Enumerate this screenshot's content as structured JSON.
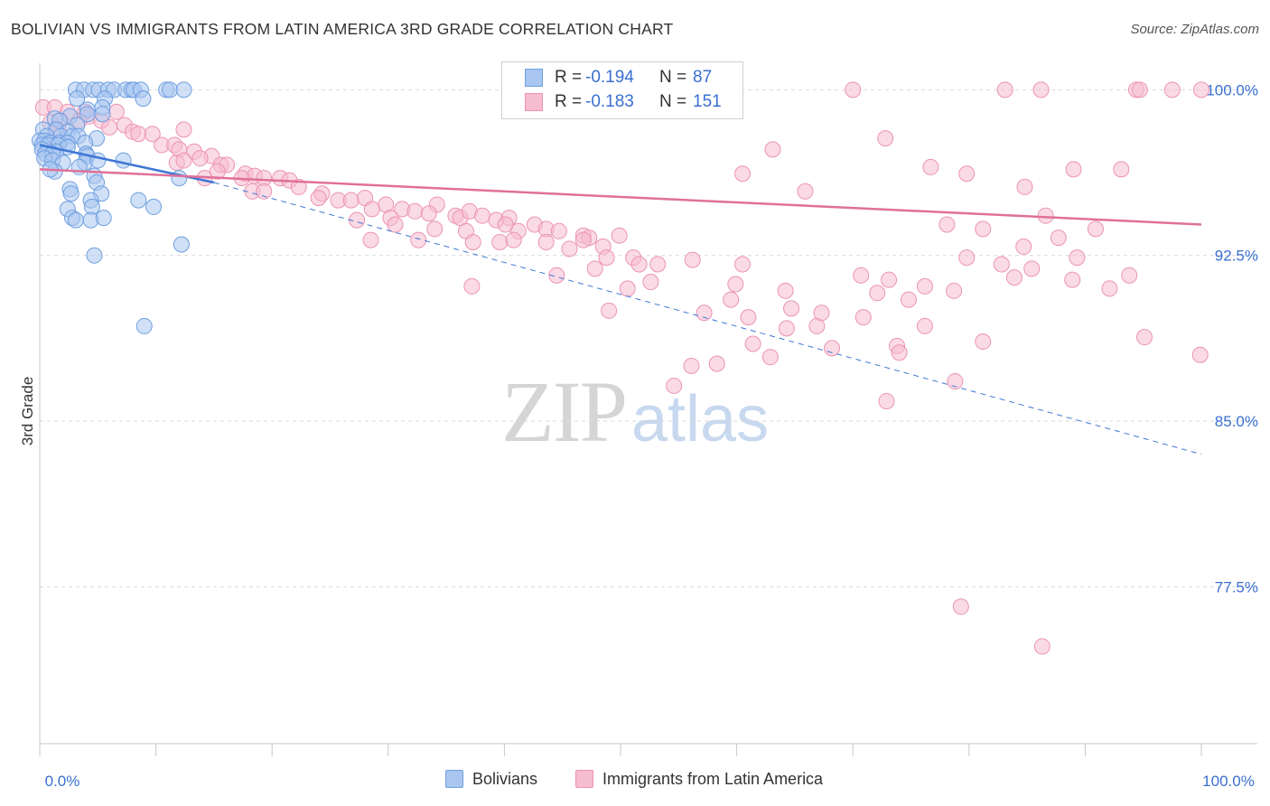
{
  "header": {
    "title": "BOLIVIAN VS IMMIGRANTS FROM LATIN AMERICA 3RD GRADE CORRELATION CHART",
    "source": "Source: ZipAtlas.com"
  },
  "watermark": {
    "zip": "ZIP",
    "atlas": "atlas"
  },
  "legend": {
    "rows": [
      {
        "r_label": "R =",
        "r_value": "-0.194",
        "n_label": "N =",
        "n_value": "87"
      },
      {
        "r_label": "R =",
        "r_value": "-0.183",
        "n_label": "N =",
        "n_value": "151"
      }
    ]
  },
  "bottom_legend": {
    "series1": "Bolivians",
    "series2": "Immigrants from Latin America"
  },
  "colors": {
    "blue_fill": "#a9c6f0",
    "blue_stroke": "#6f9fe0",
    "blue_line": "#3f77d4",
    "pink_fill": "#f6bcd0",
    "pink_stroke": "#ec94b3",
    "pink_line": "#e0709a",
    "tick_label": "#3a6fd1",
    "grid": "#d9d9d9"
  },
  "chart_data": {
    "type": "scatter",
    "title": "BOLIVIAN VS IMMIGRANTS FROM LATIN AMERICA 3RD GRADE CORRELATION CHART",
    "xlabel": "",
    "ylabel": "3rd Grade",
    "xlim": [
      0,
      100
    ],
    "ylim": [
      70.4,
      101.2
    ],
    "x_tick_labels": [
      "0.0%",
      "100.0%"
    ],
    "y_ticks": [
      100.0,
      92.5,
      85.0,
      77.5
    ],
    "y_tick_labels": [
      "100.0%",
      "92.5%",
      "85.0%",
      "77.5%"
    ],
    "grid": "horizontal dashed",
    "legend_position": "top-center",
    "series": [
      {
        "name": "Bolivians",
        "R": -0.194,
        "N": 87,
        "trend": {
          "x": [
            0,
            15
          ],
          "y": [
            97.5,
            95.8
          ],
          "extrapolated_to": [
            100,
            83.5
          ]
        },
        "points": [
          [
            3.1,
            100
          ],
          [
            3.8,
            100
          ],
          [
            4.6,
            100
          ],
          [
            5.1,
            100
          ],
          [
            5.9,
            100
          ],
          [
            6.4,
            100
          ],
          [
            7.4,
            100
          ],
          [
            7.9,
            100
          ],
          [
            8.1,
            100
          ],
          [
            8.7,
            100
          ],
          [
            10.9,
            100
          ],
          [
            11.2,
            100
          ],
          [
            12.4,
            100
          ],
          [
            3.2,
            99.6
          ],
          [
            5.6,
            99.6
          ],
          [
            8.9,
            99.6
          ],
          [
            5.4,
            99.2
          ],
          [
            4.1,
            99.1
          ],
          [
            2.6,
            98.8
          ],
          [
            4.1,
            98.9
          ],
          [
            5.4,
            98.9
          ],
          [
            1.3,
            98.7
          ],
          [
            1.7,
            98.6
          ],
          [
            3.2,
            98.4
          ],
          [
            0.3,
            98.2
          ],
          [
            1.4,
            98.2
          ],
          [
            2.4,
            98.1
          ],
          [
            0.6,
            97.9
          ],
          [
            1.8,
            97.9
          ],
          [
            2.8,
            97.9
          ],
          [
            3.3,
            97.9
          ],
          [
            4.9,
            97.8
          ],
          [
            0,
            97.7
          ],
          [
            0.4,
            97.7
          ],
          [
            0.9,
            97.6
          ],
          [
            1.7,
            97.6
          ],
          [
            2.4,
            97.6
          ],
          [
            3.9,
            97.6
          ],
          [
            0.2,
            97.5
          ],
          [
            0.7,
            97.5
          ],
          [
            1.6,
            97.5
          ],
          [
            2.4,
            97.4
          ],
          [
            0.2,
            97.3
          ],
          [
            1.4,
            97.2
          ],
          [
            0.5,
            97.1
          ],
          [
            1.1,
            97.1
          ],
          [
            4,
            97.1
          ],
          [
            4.1,
            97
          ],
          [
            0.4,
            96.9
          ],
          [
            1.1,
            96.8
          ],
          [
            2,
            96.7
          ],
          [
            3.9,
            96.7
          ],
          [
            5,
            96.8
          ],
          [
            7.2,
            96.8
          ],
          [
            3.4,
            96.5
          ],
          [
            1.3,
            96.3
          ],
          [
            0.9,
            96.4
          ],
          [
            4.7,
            96.1
          ],
          [
            12,
            96
          ],
          [
            4.9,
            95.8
          ],
          [
            2.6,
            95.5
          ],
          [
            2.7,
            95.3
          ],
          [
            5.3,
            95.3
          ],
          [
            4.4,
            95
          ],
          [
            8.5,
            95
          ],
          [
            4.5,
            94.7
          ],
          [
            2.4,
            94.6
          ],
          [
            9.8,
            94.7
          ],
          [
            2.8,
            94.2
          ],
          [
            3.1,
            94.1
          ],
          [
            4.4,
            94.1
          ],
          [
            5.5,
            94.2
          ],
          [
            12.2,
            93
          ],
          [
            4.7,
            92.5
          ],
          [
            9,
            89.3
          ]
        ]
      },
      {
        "name": "Immigrants from Latin America",
        "R": -0.183,
        "N": 151,
        "trend": {
          "x": [
            0,
            100
          ],
          "y": [
            96.4,
            93.9
          ]
        },
        "points": [
          [
            0.3,
            99.2
          ],
          [
            1.3,
            99.2
          ],
          [
            2.4,
            99
          ],
          [
            3.9,
            99
          ],
          [
            6.6,
            99
          ],
          [
            4.3,
            98.8
          ],
          [
            1.8,
            98.6
          ],
          [
            3.4,
            98.6
          ],
          [
            0.9,
            98.5
          ],
          [
            5.3,
            98.6
          ],
          [
            6,
            98.3
          ],
          [
            7.3,
            98.4
          ],
          [
            1.6,
            98.2
          ],
          [
            8,
            98.1
          ],
          [
            8.5,
            98
          ],
          [
            9.7,
            98
          ],
          [
            12.4,
            98.2
          ],
          [
            10.5,
            97.5
          ],
          [
            11.6,
            97.5
          ],
          [
            12,
            97.3
          ],
          [
            13.3,
            97.2
          ],
          [
            14.8,
            97
          ],
          [
            13.8,
            96.9
          ],
          [
            11.8,
            96.7
          ],
          [
            12.4,
            96.8
          ],
          [
            15.6,
            96.6
          ],
          [
            16.1,
            96.6
          ],
          [
            15.3,
            96.3
          ],
          [
            17.7,
            96.2
          ],
          [
            18.5,
            96.1
          ],
          [
            19.3,
            96
          ],
          [
            17.4,
            96
          ],
          [
            14.2,
            96
          ],
          [
            20.7,
            96
          ],
          [
            21.5,
            95.9
          ],
          [
            22.3,
            95.6
          ],
          [
            18.3,
            95.4
          ],
          [
            19.3,
            95.4
          ],
          [
            24.3,
            95.3
          ],
          [
            24,
            95.1
          ],
          [
            25.7,
            95
          ],
          [
            26.8,
            95
          ],
          [
            28,
            95.1
          ],
          [
            29.8,
            94.8
          ],
          [
            31.2,
            94.6
          ],
          [
            28.6,
            94.6
          ],
          [
            32.3,
            94.5
          ],
          [
            34.2,
            94.8
          ],
          [
            33.5,
            94.4
          ],
          [
            35.8,
            94.3
          ],
          [
            36.2,
            94.2
          ],
          [
            37,
            94.5
          ],
          [
            38.1,
            94.3
          ],
          [
            39.3,
            94.1
          ],
          [
            40.4,
            94.2
          ],
          [
            30.2,
            94.2
          ],
          [
            27.3,
            94.1
          ],
          [
            30.6,
            93.9
          ],
          [
            34,
            93.7
          ],
          [
            36.7,
            93.6
          ],
          [
            40.1,
            93.9
          ],
          [
            42.6,
            93.9
          ],
          [
            41.2,
            93.6
          ],
          [
            43.6,
            93.7
          ],
          [
            44.7,
            93.6
          ],
          [
            46.8,
            93.4
          ],
          [
            47.3,
            93.3
          ],
          [
            49.9,
            93.4
          ],
          [
            28.5,
            93.2
          ],
          [
            32.6,
            93.2
          ],
          [
            37.3,
            93.1
          ],
          [
            39.6,
            93.1
          ],
          [
            40.8,
            93.2
          ],
          [
            43.6,
            93.1
          ],
          [
            48.5,
            92.9
          ],
          [
            45.6,
            92.8
          ],
          [
            46.8,
            93.2
          ],
          [
            48.8,
            92.4
          ],
          [
            51.1,
            92.4
          ],
          [
            53.2,
            92.1
          ],
          [
            44.5,
            91.6
          ],
          [
            47.8,
            91.9
          ],
          [
            37.2,
            91.1
          ],
          [
            56.2,
            92.3
          ],
          [
            51.6,
            92.1
          ],
          [
            52.6,
            91.3
          ],
          [
            49,
            90
          ],
          [
            66.9,
            89.3
          ],
          [
            73.8,
            88.4
          ],
          [
            78.8,
            86.8
          ],
          [
            95.1,
            88.8
          ],
          [
            99.9,
            88
          ],
          [
            59.5,
            90.5
          ],
          [
            64.7,
            90.1
          ],
          [
            70.9,
            89.7
          ],
          [
            76.2,
            89.3
          ],
          [
            74,
            88.1
          ],
          [
            81.2,
            88.6
          ],
          [
            72.9,
            85.9
          ],
          [
            68.2,
            88.3
          ],
          [
            62.9,
            87.9
          ],
          [
            56.1,
            87.5
          ],
          [
            54.6,
            86.6
          ],
          [
            58.3,
            87.6
          ],
          [
            61.4,
            88.5
          ],
          [
            64.3,
            89.2
          ],
          [
            61,
            89.7
          ],
          [
            57.2,
            89.9
          ],
          [
            67.3,
            89.9
          ],
          [
            72.1,
            90.8
          ],
          [
            50.6,
            91
          ],
          [
            59.9,
            91.2
          ],
          [
            64.2,
            90.9
          ],
          [
            60.5,
            92.1
          ],
          [
            73.1,
            91.4
          ],
          [
            76.2,
            91.1
          ],
          [
            74.8,
            90.5
          ],
          [
            70.7,
            91.6
          ],
          [
            78.7,
            90.9
          ],
          [
            82.8,
            92.1
          ],
          [
            83.9,
            91.5
          ],
          [
            88.9,
            91.4
          ],
          [
            92.1,
            91
          ],
          [
            93.8,
            91.6
          ],
          [
            85.4,
            91.9
          ],
          [
            79.8,
            92.4
          ],
          [
            84.7,
            92.9
          ],
          [
            89.3,
            92.4
          ],
          [
            87.7,
            93.3
          ],
          [
            81.2,
            93.7
          ],
          [
            78.1,
            93.9
          ],
          [
            90.9,
            93.7
          ],
          [
            86.6,
            94.3
          ],
          [
            84.8,
            95.6
          ],
          [
            89,
            96.4
          ],
          [
            79.8,
            96.2
          ],
          [
            63.1,
            97.3
          ],
          [
            72.8,
            97.8
          ],
          [
            76.7,
            96.5
          ],
          [
            65.9,
            95.4
          ],
          [
            60.5,
            96.2
          ],
          [
            93.1,
            96.4
          ],
          [
            94.4,
            100
          ],
          [
            97.5,
            100
          ],
          [
            94.7,
            100
          ],
          [
            100,
            100
          ],
          [
            86.2,
            100
          ],
          [
            83.1,
            100
          ],
          [
            70,
            100
          ],
          [
            86.3,
            74.8
          ],
          [
            79.3,
            76.6
          ]
        ]
      }
    ]
  }
}
